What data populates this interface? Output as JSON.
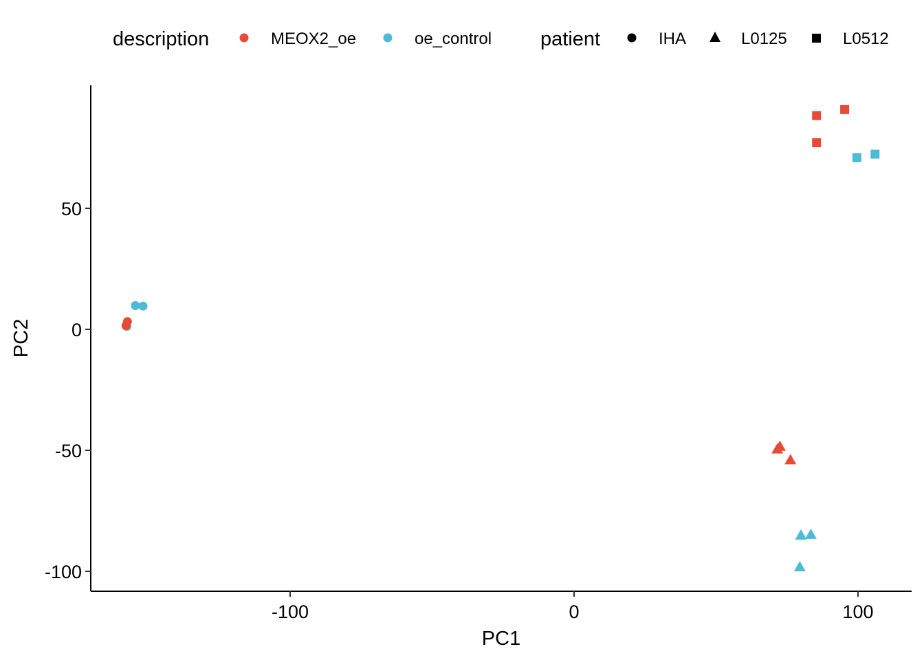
{
  "chart_data": {
    "type": "scatter",
    "xlabel": "PC1",
    "ylabel": "PC2",
    "xlim": [
      -170,
      120
    ],
    "ylim": [
      -108,
      100
    ],
    "x_ticks": [
      -100,
      0,
      100
    ],
    "y_ticks": [
      -100,
      -50,
      0,
      50
    ],
    "x_tick_labels": [
      "-100",
      "0",
      "100"
    ],
    "y_tick_labels": [
      "-100",
      "-50",
      "0",
      "50"
    ],
    "grid": false,
    "legend_position": "top",
    "legend": {
      "color": {
        "title": "description",
        "entries": [
          {
            "label": "MEOX2_oe",
            "color": "#E64B35"
          },
          {
            "label": "oe_control",
            "color": "#4DBBD5"
          }
        ]
      },
      "shape": {
        "title": "patient",
        "entries": [
          {
            "label": "IHA",
            "shape": "circle"
          },
          {
            "label": "L0125",
            "shape": "triangle"
          },
          {
            "label": "L0512",
            "shape": "square"
          }
        ]
      }
    },
    "points": [
      {
        "x": -157.5,
        "y": 1.2,
        "description": "oe_control",
        "patient": "IHA"
      },
      {
        "x": -157.8,
        "y": 1.5,
        "description": "MEOX2_oe",
        "patient": "IHA"
      },
      {
        "x": -157.3,
        "y": 3.2,
        "description": "MEOX2_oe",
        "patient": "IHA"
      },
      {
        "x": -154.5,
        "y": 9.8,
        "description": "oe_control",
        "patient": "IHA"
      },
      {
        "x": -151.8,
        "y": 9.6,
        "description": "oe_control",
        "patient": "IHA"
      },
      {
        "x": 71.6,
        "y": -49.6,
        "description": "MEOX2_oe",
        "patient": "L0125"
      },
      {
        "x": 72.5,
        "y": -48.5,
        "description": "MEOX2_oe",
        "patient": "L0125"
      },
      {
        "x": 76.2,
        "y": -54.1,
        "description": "MEOX2_oe",
        "patient": "L0125"
      },
      {
        "x": 79.9,
        "y": -85.2,
        "description": "oe_control",
        "patient": "L0125"
      },
      {
        "x": 83.4,
        "y": -84.9,
        "description": "oe_control",
        "patient": "L0125"
      },
      {
        "x": 79.5,
        "y": -98.3,
        "description": "oe_control",
        "patient": "L0125"
      },
      {
        "x": 85.4,
        "y": 88.3,
        "description": "MEOX2_oe",
        "patient": "L0512"
      },
      {
        "x": 95.3,
        "y": 90.8,
        "description": "MEOX2_oe",
        "patient": "L0512"
      },
      {
        "x": 85.4,
        "y": 77.1,
        "description": "MEOX2_oe",
        "patient": "L0512"
      },
      {
        "x": 99.6,
        "y": 70.9,
        "description": "oe_control",
        "patient": "L0512"
      },
      {
        "x": 106.0,
        "y": 72.4,
        "description": "oe_control",
        "patient": "L0512"
      }
    ]
  }
}
